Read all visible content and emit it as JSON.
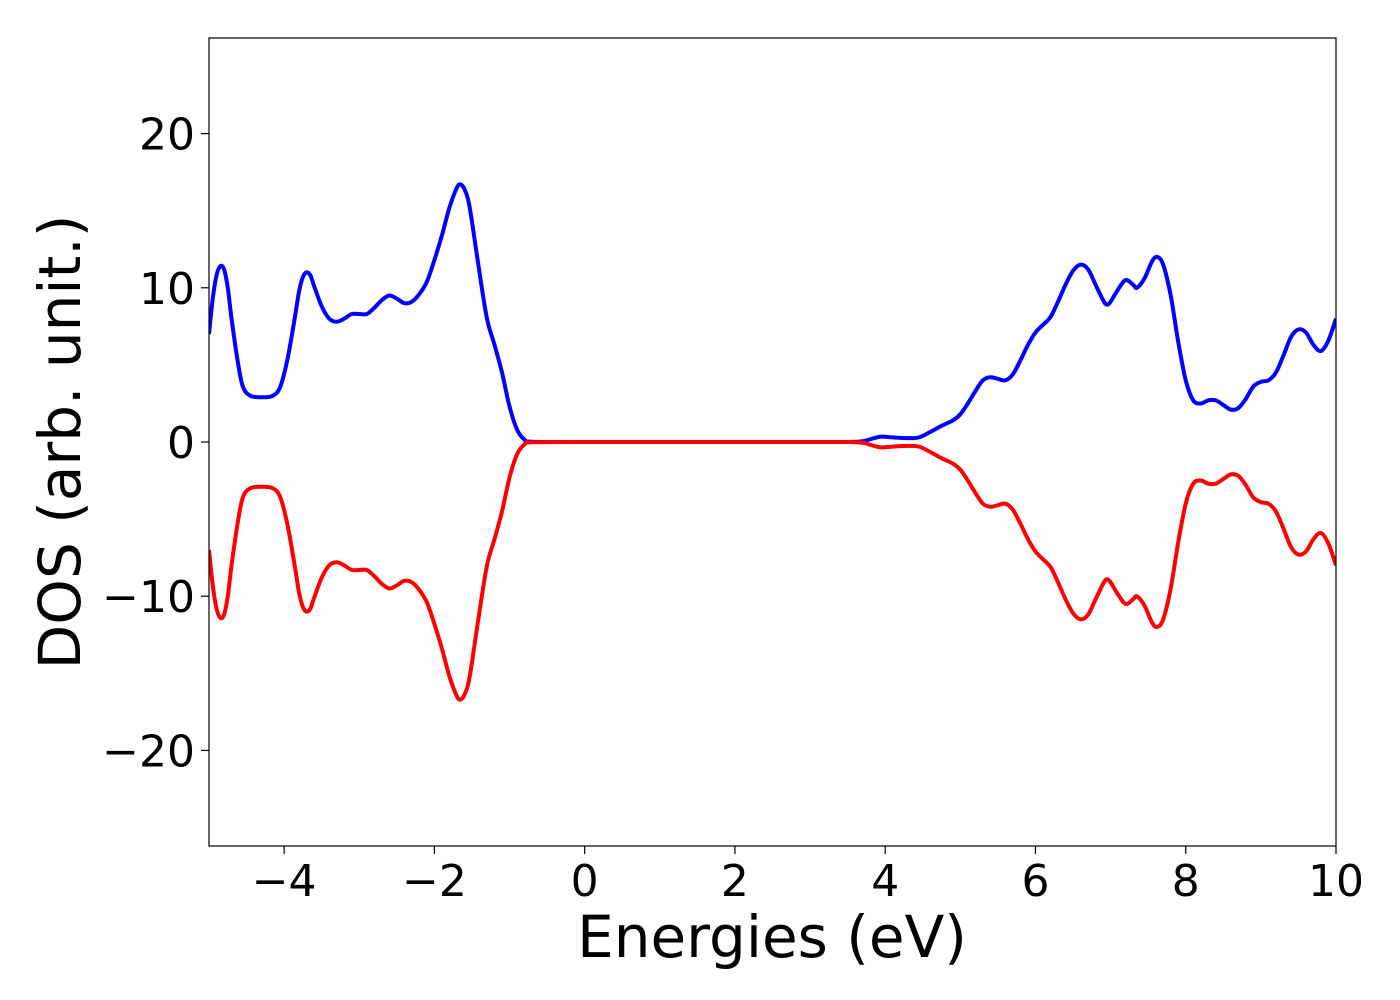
{
  "chart_data": {
    "type": "line",
    "title": "",
    "xlabel": "Energies (eV)",
    "ylabel": "DOS (arb. unit.)",
    "xlim": [
      -5,
      10
    ],
    "ylim": [
      -26.2,
      26.2
    ],
    "xticks": [
      -4,
      -2,
      0,
      2,
      4,
      6,
      8,
      10
    ],
    "yticks": [
      -20,
      -10,
      0,
      10,
      20
    ],
    "xtick_labels": [
      "−4",
      "−2",
      "0",
      "2",
      "4",
      "6",
      "8",
      "10"
    ],
    "ytick_labels": [
      "−20",
      "−10",
      "0",
      "10",
      "20"
    ],
    "grid": false,
    "legend": "none",
    "series": [
      {
        "color": "#0000ff",
        "points": [
          [
            -5.0,
            7.0
          ],
          [
            -4.95,
            9.3
          ],
          [
            -4.9,
            10.8
          ],
          [
            -4.85,
            11.4
          ],
          [
            -4.8,
            11.2
          ],
          [
            -4.75,
            10.0
          ],
          [
            -4.7,
            8.0
          ],
          [
            -4.62,
            5.3
          ],
          [
            -4.55,
            3.6
          ],
          [
            -4.45,
            3.0
          ],
          [
            -4.3,
            2.9
          ],
          [
            -4.15,
            3.0
          ],
          [
            -4.05,
            3.6
          ],
          [
            -3.95,
            5.5
          ],
          [
            -3.85,
            8.3
          ],
          [
            -3.8,
            9.8
          ],
          [
            -3.75,
            10.7
          ],
          [
            -3.7,
            11.0
          ],
          [
            -3.65,
            10.8
          ],
          [
            -3.6,
            10.1
          ],
          [
            -3.5,
            8.8
          ],
          [
            -3.4,
            8.0
          ],
          [
            -3.3,
            7.8
          ],
          [
            -3.2,
            8.0
          ],
          [
            -3.1,
            8.3
          ],
          [
            -3.0,
            8.3
          ],
          [
            -2.9,
            8.3
          ],
          [
            -2.8,
            8.7
          ],
          [
            -2.7,
            9.2
          ],
          [
            -2.6,
            9.5
          ],
          [
            -2.5,
            9.3
          ],
          [
            -2.4,
            9.0
          ],
          [
            -2.3,
            9.1
          ],
          [
            -2.2,
            9.6
          ],
          [
            -2.1,
            10.4
          ],
          [
            -2.0,
            11.8
          ],
          [
            -1.9,
            13.4
          ],
          [
            -1.8,
            15.2
          ],
          [
            -1.7,
            16.5
          ],
          [
            -1.65,
            16.7
          ],
          [
            -1.6,
            16.4
          ],
          [
            -1.55,
            15.7
          ],
          [
            -1.5,
            14.3
          ],
          [
            -1.4,
            11.0
          ],
          [
            -1.3,
            8.0
          ],
          [
            -1.2,
            6.3
          ],
          [
            -1.1,
            4.5
          ],
          [
            -1.0,
            2.3
          ],
          [
            -0.9,
            0.8
          ],
          [
            -0.8,
            0.15
          ],
          [
            -0.7,
            0.02
          ],
          [
            0.0,
            0.0
          ],
          [
            1.0,
            0.0
          ],
          [
            2.0,
            0.0
          ],
          [
            3.0,
            0.0
          ],
          [
            3.5,
            0.0
          ],
          [
            3.7,
            0.05
          ],
          [
            3.85,
            0.25
          ],
          [
            3.95,
            0.35
          ],
          [
            4.1,
            0.3
          ],
          [
            4.3,
            0.25
          ],
          [
            4.45,
            0.3
          ],
          [
            4.6,
            0.65
          ],
          [
            4.75,
            1.05
          ],
          [
            4.9,
            1.4
          ],
          [
            5.0,
            1.8
          ],
          [
            5.1,
            2.5
          ],
          [
            5.2,
            3.3
          ],
          [
            5.3,
            4.0
          ],
          [
            5.4,
            4.2
          ],
          [
            5.5,
            4.1
          ],
          [
            5.6,
            4.0
          ],
          [
            5.7,
            4.4
          ],
          [
            5.8,
            5.3
          ],
          [
            5.9,
            6.3
          ],
          [
            6.0,
            7.1
          ],
          [
            6.1,
            7.6
          ],
          [
            6.2,
            8.1
          ],
          [
            6.3,
            9.1
          ],
          [
            6.4,
            10.2
          ],
          [
            6.5,
            11.1
          ],
          [
            6.6,
            11.5
          ],
          [
            6.7,
            11.2
          ],
          [
            6.8,
            10.2
          ],
          [
            6.9,
            9.2
          ],
          [
            6.95,
            8.9
          ],
          [
            7.0,
            9.1
          ],
          [
            7.1,
            9.9
          ],
          [
            7.2,
            10.5
          ],
          [
            7.3,
            10.2
          ],
          [
            7.35,
            10.0
          ],
          [
            7.45,
            10.6
          ],
          [
            7.55,
            11.7
          ],
          [
            7.62,
            12.0
          ],
          [
            7.7,
            11.5
          ],
          [
            7.8,
            9.5
          ],
          [
            7.9,
            6.5
          ],
          [
            8.0,
            4.0
          ],
          [
            8.1,
            2.7
          ],
          [
            8.2,
            2.5
          ],
          [
            8.3,
            2.7
          ],
          [
            8.4,
            2.7
          ],
          [
            8.5,
            2.4
          ],
          [
            8.6,
            2.1
          ],
          [
            8.7,
            2.2
          ],
          [
            8.8,
            2.8
          ],
          [
            8.9,
            3.6
          ],
          [
            9.0,
            3.9
          ],
          [
            9.1,
            4.0
          ],
          [
            9.2,
            4.5
          ],
          [
            9.3,
            5.6
          ],
          [
            9.4,
            6.8
          ],
          [
            9.5,
            7.3
          ],
          [
            9.6,
            7.1
          ],
          [
            9.7,
            6.3
          ],
          [
            9.8,
            5.9
          ],
          [
            9.9,
            6.6
          ],
          [
            10.0,
            8.0
          ]
        ]
      },
      {
        "color": "#ff0000",
        "points": [
          [
            -5.0,
            -7.0
          ],
          [
            -4.95,
            -9.3
          ],
          [
            -4.9,
            -10.8
          ],
          [
            -4.85,
            -11.4
          ],
          [
            -4.8,
            -11.2
          ],
          [
            -4.75,
            -10.0
          ],
          [
            -4.7,
            -8.0
          ],
          [
            -4.62,
            -5.3
          ],
          [
            -4.55,
            -3.6
          ],
          [
            -4.45,
            -3.0
          ],
          [
            -4.3,
            -2.9
          ],
          [
            -4.15,
            -3.0
          ],
          [
            -4.05,
            -3.6
          ],
          [
            -3.95,
            -5.5
          ],
          [
            -3.85,
            -8.3
          ],
          [
            -3.8,
            -9.8
          ],
          [
            -3.75,
            -10.7
          ],
          [
            -3.7,
            -11.0
          ],
          [
            -3.65,
            -10.8
          ],
          [
            -3.6,
            -10.1
          ],
          [
            -3.5,
            -8.8
          ],
          [
            -3.4,
            -8.0
          ],
          [
            -3.3,
            -7.8
          ],
          [
            -3.2,
            -8.0
          ],
          [
            -3.1,
            -8.3
          ],
          [
            -3.0,
            -8.3
          ],
          [
            -2.9,
            -8.3
          ],
          [
            -2.8,
            -8.7
          ],
          [
            -2.7,
            -9.2
          ],
          [
            -2.6,
            -9.5
          ],
          [
            -2.5,
            -9.3
          ],
          [
            -2.4,
            -9.0
          ],
          [
            -2.3,
            -9.1
          ],
          [
            -2.2,
            -9.6
          ],
          [
            -2.1,
            -10.4
          ],
          [
            -2.0,
            -11.8
          ],
          [
            -1.9,
            -13.4
          ],
          [
            -1.8,
            -15.2
          ],
          [
            -1.7,
            -16.5
          ],
          [
            -1.65,
            -16.7
          ],
          [
            -1.6,
            -16.4
          ],
          [
            -1.55,
            -15.7
          ],
          [
            -1.5,
            -14.3
          ],
          [
            -1.4,
            -11.0
          ],
          [
            -1.3,
            -8.0
          ],
          [
            -1.2,
            -6.3
          ],
          [
            -1.1,
            -4.5
          ],
          [
            -1.0,
            -2.3
          ],
          [
            -0.9,
            -0.8
          ],
          [
            -0.8,
            -0.15
          ],
          [
            -0.7,
            -0.02
          ],
          [
            0.0,
            0.0
          ],
          [
            1.0,
            0.0
          ],
          [
            2.0,
            0.0
          ],
          [
            3.0,
            0.0
          ],
          [
            3.5,
            0.0
          ],
          [
            3.7,
            -0.05
          ],
          [
            3.85,
            -0.25
          ],
          [
            3.95,
            -0.35
          ],
          [
            4.1,
            -0.3
          ],
          [
            4.3,
            -0.25
          ],
          [
            4.45,
            -0.3
          ],
          [
            4.6,
            -0.65
          ],
          [
            4.75,
            -1.05
          ],
          [
            4.9,
            -1.4
          ],
          [
            5.0,
            -1.8
          ],
          [
            5.1,
            -2.5
          ],
          [
            5.2,
            -3.3
          ],
          [
            5.3,
            -4.0
          ],
          [
            5.4,
            -4.2
          ],
          [
            5.5,
            -4.1
          ],
          [
            5.6,
            -4.0
          ],
          [
            5.7,
            -4.4
          ],
          [
            5.8,
            -5.3
          ],
          [
            5.9,
            -6.3
          ],
          [
            6.0,
            -7.1
          ],
          [
            6.1,
            -7.6
          ],
          [
            6.2,
            -8.1
          ],
          [
            6.3,
            -9.1
          ],
          [
            6.4,
            -10.2
          ],
          [
            6.5,
            -11.1
          ],
          [
            6.6,
            -11.5
          ],
          [
            6.7,
            -11.2
          ],
          [
            6.8,
            -10.2
          ],
          [
            6.9,
            -9.2
          ],
          [
            6.95,
            -8.9
          ],
          [
            7.0,
            -9.1
          ],
          [
            7.1,
            -9.9
          ],
          [
            7.2,
            -10.5
          ],
          [
            7.3,
            -10.2
          ],
          [
            7.35,
            -10.0
          ],
          [
            7.45,
            -10.6
          ],
          [
            7.55,
            -11.7
          ],
          [
            7.62,
            -12.0
          ],
          [
            7.7,
            -11.5
          ],
          [
            7.8,
            -9.5
          ],
          [
            7.9,
            -6.5
          ],
          [
            8.0,
            -4.0
          ],
          [
            8.1,
            -2.7
          ],
          [
            8.2,
            -2.5
          ],
          [
            8.3,
            -2.7
          ],
          [
            8.4,
            -2.7
          ],
          [
            8.5,
            -2.4
          ],
          [
            8.6,
            -2.1
          ],
          [
            8.7,
            -2.2
          ],
          [
            8.8,
            -2.8
          ],
          [
            8.9,
            -3.6
          ],
          [
            9.0,
            -3.9
          ],
          [
            9.1,
            -4.0
          ],
          [
            9.2,
            -4.5
          ],
          [
            9.3,
            -5.6
          ],
          [
            9.4,
            -6.8
          ],
          [
            9.5,
            -7.3
          ],
          [
            9.6,
            -7.1
          ],
          [
            9.7,
            -6.3
          ],
          [
            9.8,
            -5.9
          ],
          [
            9.9,
            -6.6
          ],
          [
            10.0,
            -8.0
          ]
        ]
      }
    ]
  }
}
